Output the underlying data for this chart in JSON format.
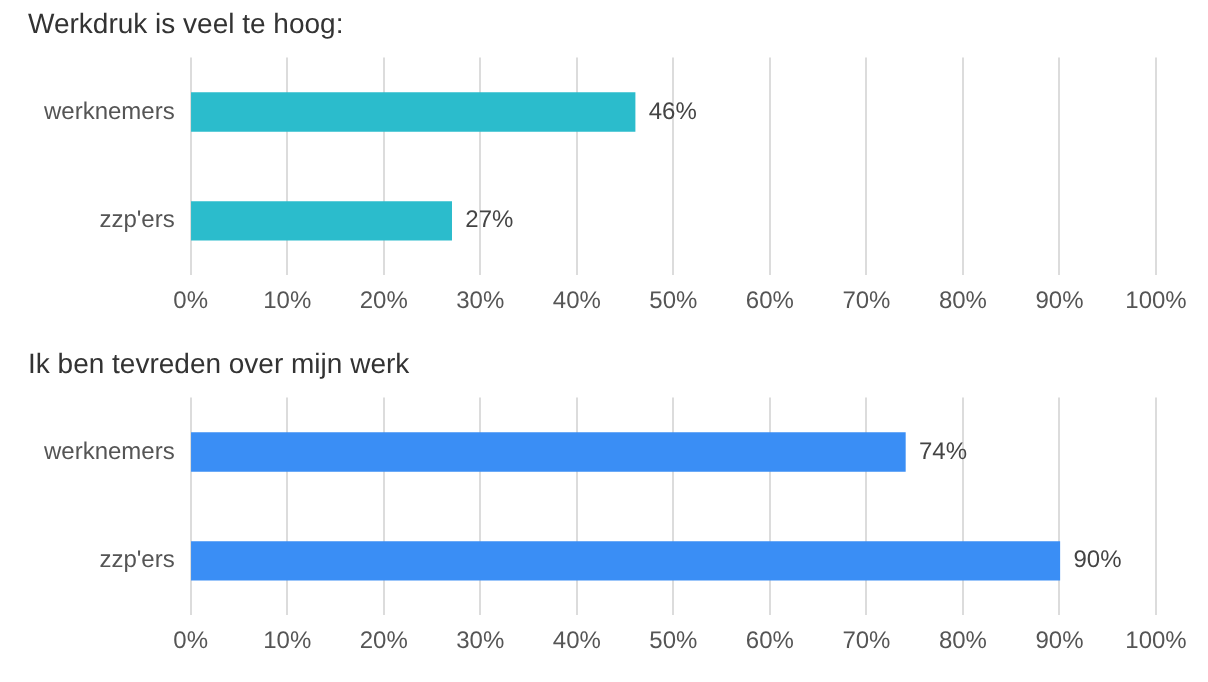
{
  "chart_data": [
    {
      "type": "bar",
      "orientation": "horizontal",
      "title": "Werkdruk is veel te hoog:",
      "categories": [
        "werknemers",
        "zzp'ers"
      ],
      "values": [
        46,
        27
      ],
      "value_labels": [
        "46%",
        "27%"
      ],
      "color": "#2bbccc",
      "xlim": [
        0,
        100
      ],
      "xticks": [
        {
          "value": 0,
          "label": "0%"
        },
        {
          "value": 10,
          "label": "10%"
        },
        {
          "value": 20,
          "label": "20%"
        },
        {
          "value": 30,
          "label": "30%"
        },
        {
          "value": 40,
          "label": "40%"
        },
        {
          "value": 50,
          "label": "50%"
        },
        {
          "value": 60,
          "label": "60%"
        },
        {
          "value": 70,
          "label": "70%"
        },
        {
          "value": 80,
          "label": "80%"
        },
        {
          "value": 90,
          "label": "90%"
        },
        {
          "value": 100,
          "label": "100%"
        }
      ],
      "grid": "x",
      "legend": false
    },
    {
      "type": "bar",
      "orientation": "horizontal",
      "title": "Ik ben tevreden over mijn werk",
      "categories": [
        "werknemers",
        "zzp'ers"
      ],
      "values": [
        74,
        90
      ],
      "value_labels": [
        "74%",
        "90%"
      ],
      "color": "#3a8ef5",
      "xlim": [
        0,
        100
      ],
      "xticks": [
        {
          "value": 0,
          "label": "0%"
        },
        {
          "value": 10,
          "label": "10%"
        },
        {
          "value": 20,
          "label": "20%"
        },
        {
          "value": 30,
          "label": "30%"
        },
        {
          "value": 40,
          "label": "40%"
        },
        {
          "value": 50,
          "label": "50%"
        },
        {
          "value": 60,
          "label": "60%"
        },
        {
          "value": 70,
          "label": "70%"
        },
        {
          "value": 80,
          "label": "80%"
        },
        {
          "value": 90,
          "label": "90%"
        },
        {
          "value": 100,
          "label": "100%"
        }
      ],
      "grid": "x",
      "legend": false
    }
  ]
}
